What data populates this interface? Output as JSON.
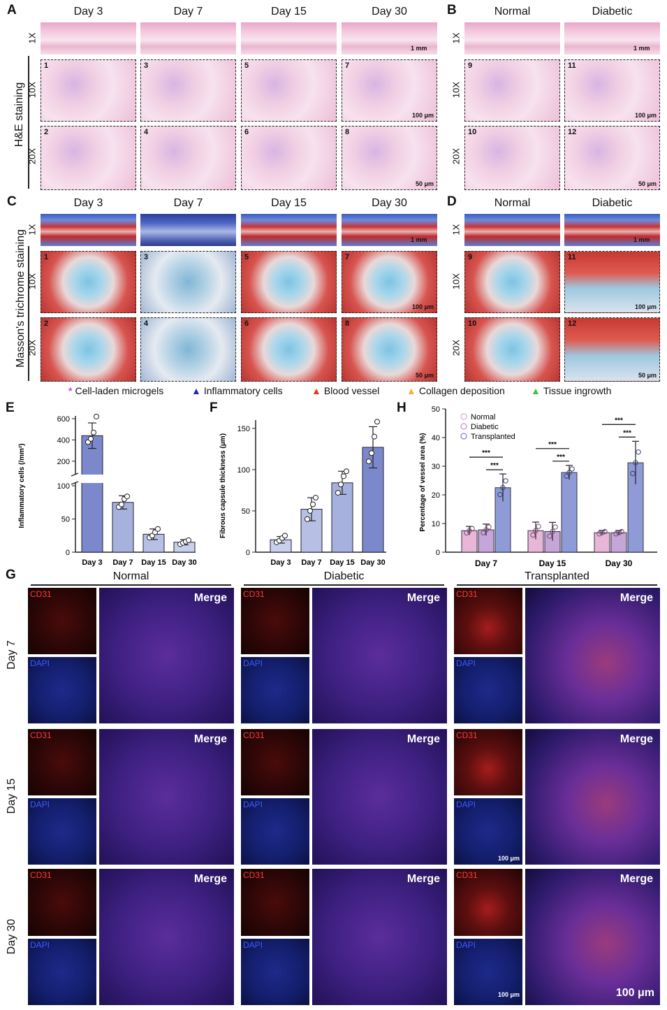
{
  "panels": {
    "A": {
      "label": "A",
      "columns": [
        "Day 3",
        "Day 7",
        "Day 15",
        "Day 30"
      ],
      "row_labels": [
        "1X",
        "10X",
        "20X"
      ],
      "side_label": "H&E staining",
      "tile_numbers": [
        "1",
        "2",
        "3",
        "4",
        "5",
        "6",
        "7",
        "8"
      ],
      "scale_1x": "1 mm",
      "scale_10x": "100 μm",
      "scale_20x": "50 μm"
    },
    "B": {
      "label": "B",
      "columns": [
        "Normal",
        "Diabetic"
      ],
      "row_labels": [
        "1X",
        "10X",
        "20X"
      ],
      "tile_numbers": [
        "9",
        "10",
        "11",
        "12"
      ],
      "scale_1x": "1 mm",
      "scale_10x": "100 μm",
      "scale_20x": "50 μm"
    },
    "C": {
      "label": "C",
      "columns": [
        "Day 3",
        "Day 7",
        "Day 15",
        "Day 30"
      ],
      "row_labels": [
        "1X",
        "10X",
        "20X"
      ],
      "side_label": "Masson's trichrome staining",
      "tile_numbers": [
        "1",
        "2",
        "3",
        "4",
        "5",
        "6",
        "7",
        "8"
      ],
      "scale_1x": "1 mm",
      "scale_10x": "100 μm",
      "scale_20x": "50 μm"
    },
    "D": {
      "label": "D",
      "columns": [
        "Normal",
        "Diabetic"
      ],
      "row_labels": [
        "1X",
        "10X",
        "20X"
      ],
      "tile_numbers": [
        "9",
        "10",
        "11",
        "12"
      ],
      "scale_1x": "1 mm",
      "scale_10x": "100 μm",
      "scale_20x": "50 μm"
    },
    "E": {
      "label": "E"
    },
    "F": {
      "label": "F"
    },
    "H": {
      "label": "H"
    },
    "G": {
      "label": "G",
      "columns": [
        "Normal",
        "Diabetic",
        "Transplanted"
      ],
      "rows": [
        "Day 7",
        "Day 15",
        "Day 30"
      ],
      "cd31": "CD31",
      "dapi": "DAPI",
      "merge": "Merge",
      "scale_small": "100 μm",
      "scale_big": "100 μm"
    }
  },
  "legend": [
    {
      "symbol": "*",
      "color": "#d63fd6",
      "label": "Cell-laden microgels"
    },
    {
      "symbol": "▲",
      "color": "#1f2fa8",
      "label": "Inflammatory cells"
    },
    {
      "symbol": "▲",
      "color": "#e03a1e",
      "label": "Blood vessel"
    },
    {
      "symbol": "▲",
      "color": "#f0b23a",
      "label": "Collagen deposition"
    },
    {
      "symbol": "▲",
      "color": "#3ec43e",
      "label": "Tissue ingrowth"
    }
  ],
  "chart_data": [
    {
      "id": "E",
      "type": "bar",
      "categories": [
        "Day 3",
        "Day 7",
        "Day 15",
        "Day 30"
      ],
      "values": [
        440,
        75,
        27,
        15
      ],
      "errors": [
        120,
        10,
        8,
        4
      ],
      "points": [
        [
          380,
          410,
          470,
          620
        ],
        [
          68,
          72,
          80,
          84
        ],
        [
          22,
          25,
          30,
          35
        ],
        [
          12,
          14,
          16,
          18
        ]
      ],
      "ylabel": "Inflammatory cells (/mm²)",
      "yticks_lower": [
        0,
        50,
        100
      ],
      "yticks_upper": [
        200,
        400,
        600
      ],
      "axis_break": true,
      "colors": [
        "#7b89cc",
        "#a7b1dd",
        "#b7c0e4",
        "#c9d0ec"
      ]
    },
    {
      "id": "F",
      "type": "bar",
      "categories": [
        "Day 3",
        "Day 7",
        "Day 15",
        "Day 30"
      ],
      "values": [
        15,
        52,
        84,
        127
      ],
      "errors": [
        4,
        14,
        14,
        25
      ],
      "points": [
        [
          12,
          14,
          17,
          20
        ],
        [
          40,
          50,
          58,
          66
        ],
        [
          72,
          82,
          92,
          98
        ],
        [
          110,
          120,
          140,
          158
        ]
      ],
      "ylabel": "Fibrous capsule thickness (μm)",
      "yticks": [
        0,
        50,
        100,
        150
      ],
      "ylim": [
        0,
        160
      ],
      "colors": [
        "#c9d0ec",
        "#b7c0e4",
        "#a7b1dd",
        "#7b89cc"
      ]
    },
    {
      "id": "H",
      "type": "bar",
      "categories": [
        "Day 7",
        "Day 15",
        "Day 30"
      ],
      "series": [
        {
          "name": "Normal",
          "values": [
            7.5,
            7.5,
            6.8
          ],
          "errors": [
            1.5,
            3,
            0.8
          ],
          "color": "#e8b6d7"
        },
        {
          "name": "Diabetic",
          "values": [
            7.8,
            7.2,
            6.8
          ],
          "errors": [
            2,
            3.2,
            0.8
          ],
          "color": "#c5a6d8"
        },
        {
          "name": "Transplanted",
          "values": [
            22.5,
            27.8,
            31.2
          ],
          "errors": [
            4.8,
            2.5,
            7.5
          ],
          "color": "#8e9bd6"
        }
      ],
      "ylabel": "Percentage of vessel area (%)",
      "yticks": [
        0,
        10,
        20,
        30,
        40,
        50
      ],
      "ylim": [
        0,
        50
      ],
      "significance": "***"
    }
  ]
}
